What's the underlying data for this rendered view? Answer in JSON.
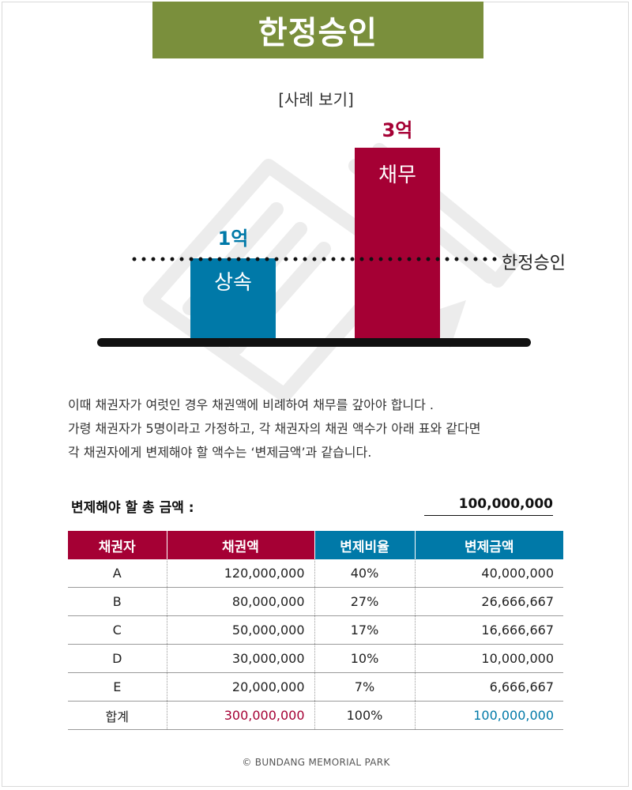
{
  "header": {
    "title": "한정승인"
  },
  "diagram": {
    "subtitle": "[사례 보기]",
    "inheritance": {
      "label": "상속",
      "amount": "1억",
      "value": 1,
      "color": "#0079a8"
    },
    "debt": {
      "label": "채무",
      "amount": "3억",
      "value": 3,
      "color": "#a50034"
    },
    "threshold_label": "한정승인"
  },
  "explanation": {
    "line1": "이때 채권자가 여럿인 경우 채권액에 비례하여 채무를 갚아야 합니다 .",
    "line2": "가령 채권자가 5명이라고 가정하고, 각 채권자의 채권 액수가 아래 표와 같다면",
    "line3": "각 채권자에게 변제해야 할 액수는 ‘변제금액’과 같습니다."
  },
  "total": {
    "label": "변제해야 할 총 금액 :",
    "value": "100,000,000"
  },
  "table": {
    "headers": [
      "채권자",
      "채권액",
      "변제비율",
      "변제금액"
    ],
    "rows": [
      [
        "A",
        "120,000,000",
        "40%",
        "40,000,000"
      ],
      [
        "B",
        "80,000,000",
        "27%",
        "26,666,667"
      ],
      [
        "C",
        "50,000,000",
        "17%",
        "16,666,667"
      ],
      [
        "D",
        "30,000,000",
        "10%",
        "10,000,000"
      ],
      [
        "E",
        "20,000,000",
        "7%",
        "6,666,667"
      ]
    ],
    "total_row": [
      "합계",
      "300,000,000",
      "100%",
      "100,000,000"
    ],
    "colors": {
      "red": "#a50034",
      "blue": "#0079a8"
    }
  },
  "footer": {
    "copyright": "© BUNDANG MEMORIAL PARK"
  }
}
